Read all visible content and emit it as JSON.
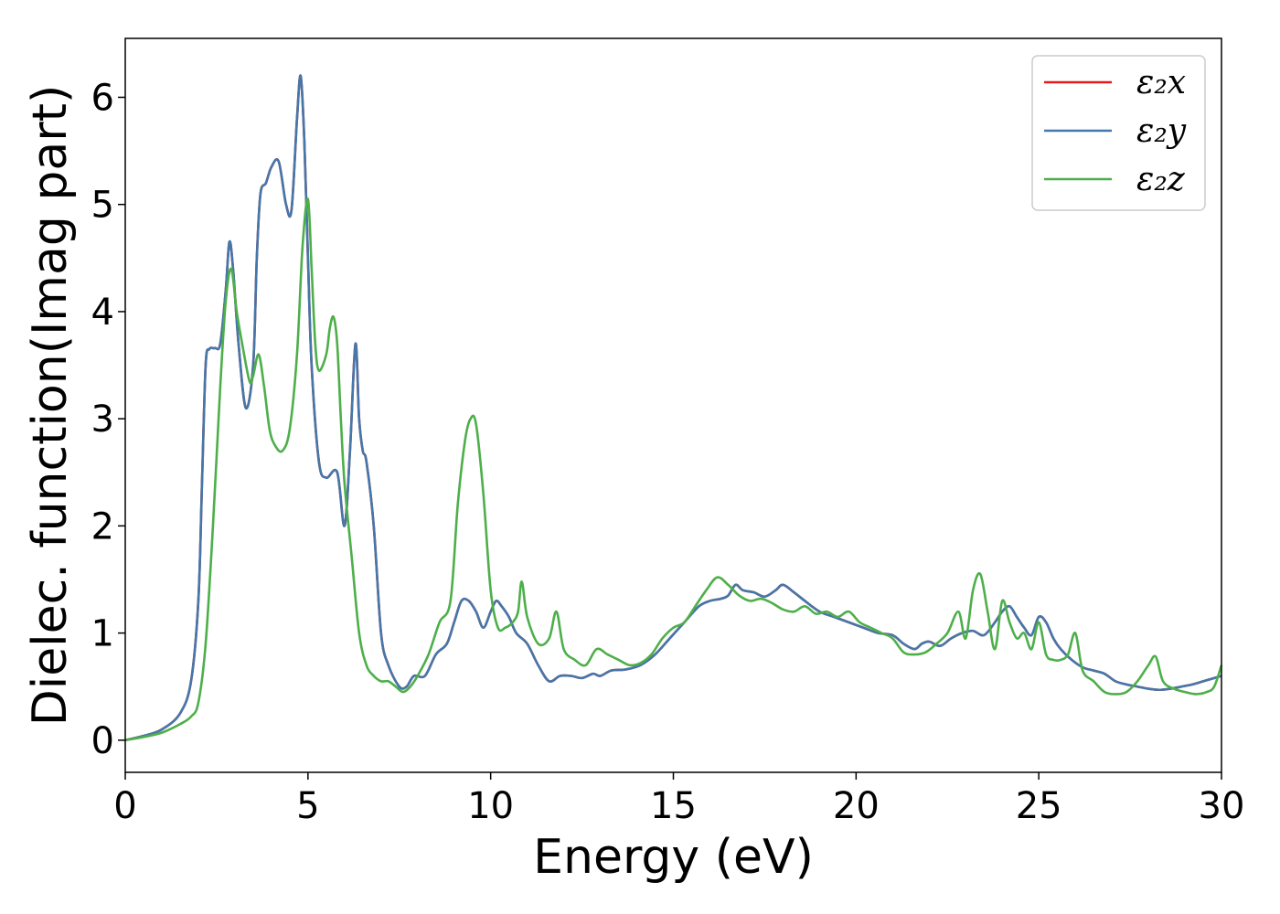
{
  "chart_data": {
    "type": "line",
    "title": "",
    "xlabel": "Energy (eV)",
    "ylabel": "Dielec. function(Imag part)",
    "xlim": [
      0,
      30
    ],
    "ylim": [
      -0.3,
      6.55
    ],
    "xticks": [
      0,
      5,
      10,
      15,
      20,
      25,
      30
    ],
    "yticks": [
      0,
      1,
      2,
      3,
      4,
      5,
      6
    ],
    "grid": false,
    "legend": "top-right",
    "series": [
      {
        "name": "ε₂x",
        "color": "#e41a1c",
        "x": [
          0,
          0.5,
          1,
          1.5,
          1.8,
          2.0,
          2.1,
          2.2,
          2.3,
          2.45,
          2.6,
          2.75,
          2.85,
          2.95,
          3.1,
          3.3,
          3.5,
          3.6,
          3.7,
          3.85,
          4.0,
          4.2,
          4.4,
          4.55,
          4.7,
          4.8,
          4.9,
          5.0,
          5.1,
          5.3,
          5.5,
          5.8,
          6.0,
          6.15,
          6.3,
          6.4,
          6.5,
          6.6,
          6.8,
          7.0,
          7.2,
          7.5,
          7.7,
          7.9,
          8.2,
          8.5,
          8.8,
          9.0,
          9.2,
          9.4,
          9.6,
          9.8,
          10.0,
          10.15,
          10.3,
          10.5,
          10.7,
          11.0,
          11.3,
          11.6,
          11.9,
          12.2,
          12.5,
          12.8,
          13.0,
          13.3,
          13.7,
          14.1,
          14.5,
          14.9,
          15.3,
          15.7,
          16.0,
          16.3,
          16.5,
          16.7,
          16.9,
          17.2,
          17.5,
          17.8,
          18.0,
          18.3,
          18.6,
          19.0,
          19.4,
          19.8,
          20.2,
          20.6,
          21.0,
          21.3,
          21.6,
          21.8,
          22.0,
          22.3,
          22.6,
          22.9,
          23.2,
          23.5,
          23.8,
          24.0,
          24.2,
          24.4,
          24.6,
          24.8,
          25.0,
          25.2,
          25.4,
          25.6,
          25.9,
          26.2,
          26.5,
          26.8,
          27.1,
          27.4,
          27.7,
          28.0,
          28.3,
          28.6,
          28.9,
          29.2,
          29.5,
          29.8,
          30.0
        ],
        "y": [
          0,
          0.04,
          0.1,
          0.25,
          0.55,
          1.3,
          2.4,
          3.5,
          3.65,
          3.66,
          3.7,
          4.2,
          4.65,
          4.4,
          3.7,
          3.1,
          3.5,
          4.5,
          5.1,
          5.2,
          5.35,
          5.4,
          5.0,
          4.95,
          5.8,
          6.2,
          5.6,
          4.5,
          3.5,
          2.6,
          2.45,
          2.5,
          2.0,
          2.7,
          3.7,
          3.0,
          2.7,
          2.6,
          2.0,
          1.0,
          0.7,
          0.5,
          0.5,
          0.6,
          0.6,
          0.8,
          0.9,
          1.1,
          1.3,
          1.3,
          1.2,
          1.05,
          1.2,
          1.3,
          1.25,
          1.15,
          1.0,
          0.9,
          0.7,
          0.55,
          0.6,
          0.6,
          0.58,
          0.62,
          0.6,
          0.65,
          0.66,
          0.7,
          0.8,
          0.95,
          1.1,
          1.25,
          1.3,
          1.32,
          1.35,
          1.45,
          1.4,
          1.38,
          1.34,
          1.4,
          1.45,
          1.38,
          1.3,
          1.2,
          1.15,
          1.1,
          1.05,
          1.0,
          0.98,
          0.9,
          0.85,
          0.9,
          0.92,
          0.88,
          0.95,
          1.0,
          1.02,
          0.98,
          1.1,
          1.2,
          1.25,
          1.15,
          1.05,
          0.98,
          1.15,
          1.1,
          0.95,
          0.85,
          0.75,
          0.68,
          0.65,
          0.62,
          0.55,
          0.52,
          0.5,
          0.48,
          0.47,
          0.48,
          0.5,
          0.52,
          0.55,
          0.58,
          0.6
        ]
      },
      {
        "name": "ε₂y",
        "color": "#4477aa",
        "x": [
          0,
          0.5,
          1,
          1.5,
          1.8,
          2.0,
          2.1,
          2.2,
          2.3,
          2.45,
          2.6,
          2.75,
          2.85,
          2.95,
          3.1,
          3.3,
          3.5,
          3.6,
          3.7,
          3.85,
          4.0,
          4.2,
          4.4,
          4.55,
          4.7,
          4.8,
          4.9,
          5.0,
          5.1,
          5.3,
          5.5,
          5.8,
          6.0,
          6.15,
          6.3,
          6.4,
          6.5,
          6.6,
          6.8,
          7.0,
          7.2,
          7.5,
          7.7,
          7.9,
          8.2,
          8.5,
          8.8,
          9.0,
          9.2,
          9.4,
          9.6,
          9.8,
          10.0,
          10.15,
          10.3,
          10.5,
          10.7,
          11.0,
          11.3,
          11.6,
          11.9,
          12.2,
          12.5,
          12.8,
          13.0,
          13.3,
          13.7,
          14.1,
          14.5,
          14.9,
          15.3,
          15.7,
          16.0,
          16.3,
          16.5,
          16.7,
          16.9,
          17.2,
          17.5,
          17.8,
          18.0,
          18.3,
          18.6,
          19.0,
          19.4,
          19.8,
          20.2,
          20.6,
          21.0,
          21.3,
          21.6,
          21.8,
          22.0,
          22.3,
          22.6,
          22.9,
          23.2,
          23.5,
          23.8,
          24.0,
          24.2,
          24.4,
          24.6,
          24.8,
          25.0,
          25.2,
          25.4,
          25.6,
          25.9,
          26.2,
          26.5,
          26.8,
          27.1,
          27.4,
          27.7,
          28.0,
          28.3,
          28.6,
          28.9,
          29.2,
          29.5,
          29.8,
          30.0
        ],
        "y": [
          0,
          0.04,
          0.1,
          0.25,
          0.55,
          1.3,
          2.4,
          3.5,
          3.65,
          3.66,
          3.7,
          4.2,
          4.65,
          4.4,
          3.7,
          3.1,
          3.5,
          4.5,
          5.1,
          5.2,
          5.35,
          5.4,
          5.0,
          4.95,
          5.8,
          6.2,
          5.6,
          4.5,
          3.5,
          2.6,
          2.45,
          2.5,
          2.0,
          2.7,
          3.7,
          3.0,
          2.7,
          2.6,
          2.0,
          1.0,
          0.7,
          0.5,
          0.5,
          0.6,
          0.6,
          0.8,
          0.9,
          1.1,
          1.3,
          1.3,
          1.2,
          1.05,
          1.2,
          1.3,
          1.25,
          1.15,
          1.0,
          0.9,
          0.7,
          0.55,
          0.6,
          0.6,
          0.58,
          0.62,
          0.6,
          0.65,
          0.66,
          0.7,
          0.8,
          0.95,
          1.1,
          1.25,
          1.3,
          1.32,
          1.35,
          1.45,
          1.4,
          1.38,
          1.34,
          1.4,
          1.45,
          1.38,
          1.3,
          1.2,
          1.15,
          1.1,
          1.05,
          1.0,
          0.98,
          0.9,
          0.85,
          0.9,
          0.92,
          0.88,
          0.95,
          1.0,
          1.02,
          0.98,
          1.1,
          1.2,
          1.25,
          1.15,
          1.05,
          0.98,
          1.15,
          1.1,
          0.95,
          0.85,
          0.75,
          0.68,
          0.65,
          0.62,
          0.55,
          0.52,
          0.5,
          0.48,
          0.47,
          0.48,
          0.5,
          0.52,
          0.55,
          0.58,
          0.6
        ]
      },
      {
        "name": "ε₂z",
        "color": "#4daf4a",
        "x": [
          0,
          0.5,
          1,
          1.5,
          1.8,
          2.0,
          2.2,
          2.4,
          2.6,
          2.75,
          2.9,
          3.05,
          3.2,
          3.4,
          3.5,
          3.65,
          3.8,
          3.95,
          4.1,
          4.3,
          4.5,
          4.7,
          4.85,
          5.0,
          5.1,
          5.2,
          5.3,
          5.5,
          5.6,
          5.7,
          5.8,
          5.9,
          6.0,
          6.2,
          6.4,
          6.6,
          6.8,
          7.0,
          7.2,
          7.4,
          7.6,
          7.8,
          8.0,
          8.3,
          8.6,
          8.9,
          9.1,
          9.3,
          9.45,
          9.6,
          9.8,
          10.0,
          10.2,
          10.4,
          10.6,
          10.75,
          10.85,
          11.0,
          11.3,
          11.6,
          11.8,
          12.0,
          12.3,
          12.6,
          12.9,
          13.2,
          13.5,
          13.8,
          14.1,
          14.4,
          14.7,
          15.0,
          15.3,
          15.6,
          15.9,
          16.2,
          16.5,
          16.8,
          17.1,
          17.4,
          17.7,
          18.0,
          18.3,
          18.6,
          18.9,
          19.2,
          19.5,
          19.8,
          20.1,
          20.4,
          20.7,
          21.0,
          21.3,
          21.6,
          21.9,
          22.2,
          22.5,
          22.8,
          23.0,
          23.2,
          23.4,
          23.6,
          23.8,
          24.0,
          24.2,
          24.4,
          24.6,
          24.8,
          25.0,
          25.2,
          25.4,
          25.6,
          25.8,
          26.0,
          26.2,
          26.5,
          26.8,
          27.1,
          27.4,
          27.7,
          28.0,
          28.2,
          28.4,
          28.7,
          29.0,
          29.3,
          29.6,
          29.8,
          30.0
        ],
        "y": [
          0,
          0.03,
          0.07,
          0.15,
          0.22,
          0.35,
          0.9,
          2.0,
          3.3,
          4.1,
          4.4,
          4.0,
          3.7,
          3.35,
          3.4,
          3.6,
          3.3,
          2.9,
          2.75,
          2.7,
          2.9,
          3.6,
          4.6,
          5.05,
          4.4,
          3.7,
          3.45,
          3.6,
          3.85,
          3.95,
          3.7,
          3.0,
          2.4,
          1.7,
          1.0,
          0.7,
          0.6,
          0.55,
          0.55,
          0.5,
          0.45,
          0.5,
          0.6,
          0.8,
          1.1,
          1.3,
          2.2,
          2.8,
          3.0,
          2.95,
          2.3,
          1.4,
          1.05,
          1.05,
          1.1,
          1.2,
          1.48,
          1.15,
          0.9,
          0.95,
          1.2,
          0.85,
          0.75,
          0.7,
          0.85,
          0.8,
          0.75,
          0.7,
          0.72,
          0.8,
          0.95,
          1.05,
          1.1,
          1.25,
          1.4,
          1.52,
          1.45,
          1.35,
          1.3,
          1.32,
          1.28,
          1.22,
          1.2,
          1.25,
          1.18,
          1.2,
          1.15,
          1.2,
          1.1,
          1.05,
          1.0,
          0.95,
          0.82,
          0.8,
          0.82,
          0.9,
          1.0,
          1.2,
          0.95,
          1.4,
          1.55,
          1.2,
          0.85,
          1.3,
          1.1,
          0.95,
          1.0,
          0.85,
          1.1,
          0.8,
          0.75,
          0.75,
          0.8,
          1.0,
          0.65,
          0.55,
          0.45,
          0.43,
          0.45,
          0.55,
          0.7,
          0.78,
          0.55,
          0.48,
          0.45,
          0.43,
          0.45,
          0.5,
          0.7
        ]
      }
    ]
  }
}
